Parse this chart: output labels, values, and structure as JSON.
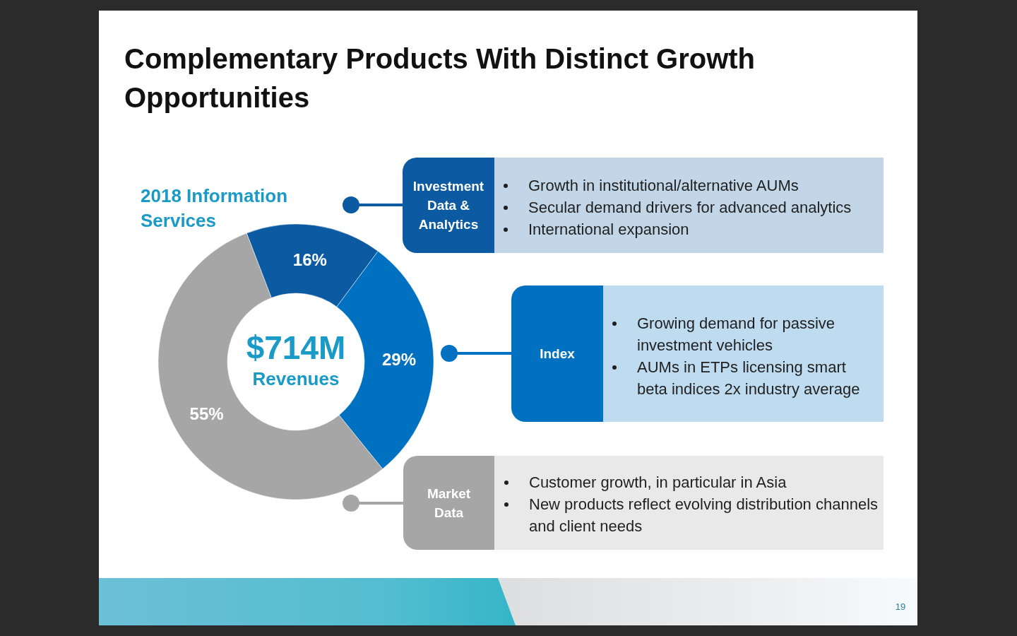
{
  "chart_data": {
    "type": "donut",
    "title": "Complementary Products With Distinct Growth Opportunities",
    "subtitle": "2018 Information Services",
    "categories": [
      "Investment Data & Analytics",
      "Index",
      "Market Data"
    ],
    "values": [
      16,
      29,
      55
    ],
    "colors": [
      "#0b5aa2",
      "#0070c0",
      "#a6a6a6"
    ],
    "value_labels": [
      "16%",
      "29%",
      "55%"
    ],
    "legend": "right",
    "annotations": [
      "$714M",
      "Revenues",
      "Growth in institutional/alternative AUMs",
      "Secular demand drivers for advanced analytics",
      "International expansion",
      "Growing demand for passive investment vehicles",
      "AUMs in ETPs licensing smart beta indices 2x industry average",
      "Customer growth, in particular in Asia",
      "New products reflect evolving distribution channels and client needs",
      "19"
    ]
  }
}
